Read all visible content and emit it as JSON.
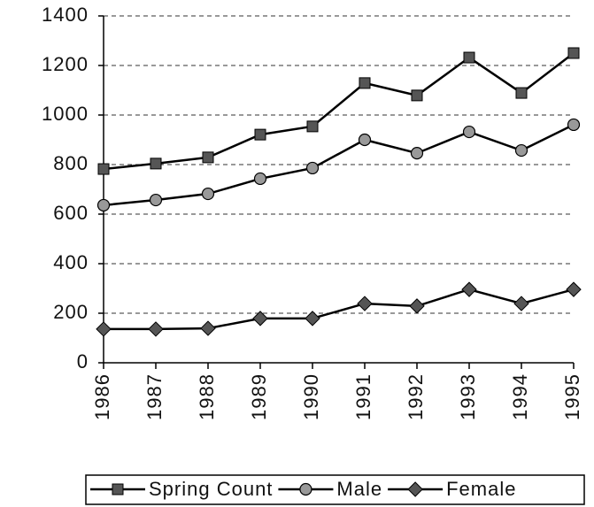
{
  "chart_data": {
    "type": "line",
    "categories": [
      "1986",
      "1987",
      "1988",
      "1989",
      "1990",
      "1991",
      "1992",
      "1993",
      "1994",
      "1995"
    ],
    "series": [
      {
        "name": "Spring Count",
        "color": "#555555",
        "marker": "square",
        "values": [
          782,
          804,
          829,
          921,
          954,
          1129,
          1079,
          1232,
          1089,
          1250
        ]
      },
      {
        "name": "Male",
        "color": "#555555",
        "marker": "circle",
        "values": [
          636,
          657,
          682,
          743,
          786,
          900,
          846,
          932,
          857,
          961
        ]
      },
      {
        "name": "Female",
        "color": "#555555",
        "marker": "diamond",
        "values": [
          136,
          136,
          139,
          179,
          179,
          239,
          229,
          296,
          239,
          296
        ]
      }
    ],
    "ylim": [
      0,
      1400
    ],
    "yticks": [
      0,
      200,
      400,
      600,
      800,
      1000,
      1200,
      1400
    ],
    "grid": true,
    "legend": "bottom"
  }
}
